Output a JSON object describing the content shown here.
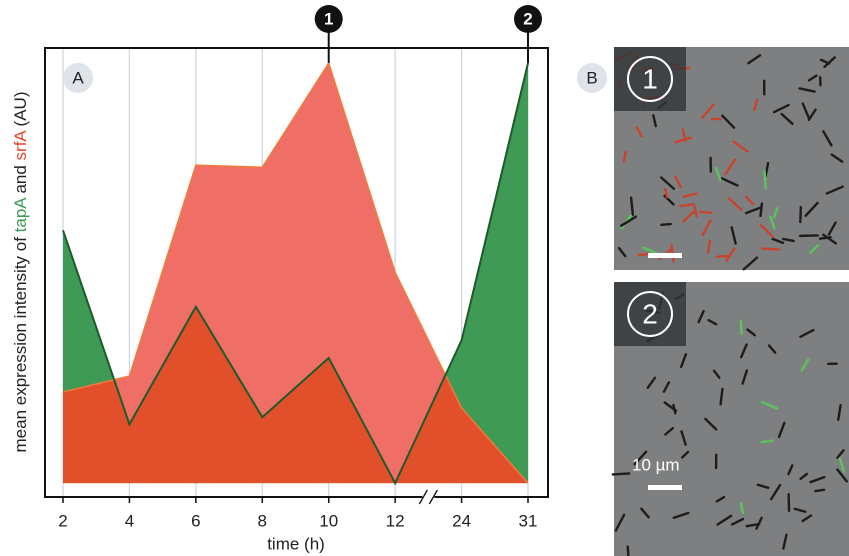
{
  "chart_data": {
    "type": "area",
    "panel_label": "A",
    "xlabel": "time (h)",
    "ylabel_parts": [
      "mean expression intensity of ",
      "tapA",
      " and ",
      "srfA",
      " (AU)"
    ],
    "categories": [
      2,
      4,
      6,
      8,
      10,
      12,
      24,
      31
    ],
    "series": [
      {
        "name": "tapA",
        "color": "#3f9a55",
        "values": [
          60.2,
          14,
          42,
          15.7,
          29.8,
          0,
          34,
          100
        ]
      },
      {
        "name": "srfA",
        "color": "#ef6f66",
        "values": [
          21.7,
          25.5,
          75.7,
          75.2,
          100,
          50.2,
          17.9,
          0
        ]
      }
    ],
    "ylim": [
      -3.3,
      103.6
    ],
    "grid": true,
    "annotations": [
      {
        "text": "1",
        "x": 10
      },
      {
        "text": "2",
        "x": 31
      }
    ]
  },
  "images": {
    "panel_label": "B",
    "labels": [
      "1",
      "2"
    ],
    "scale_label": "10 µm"
  }
}
